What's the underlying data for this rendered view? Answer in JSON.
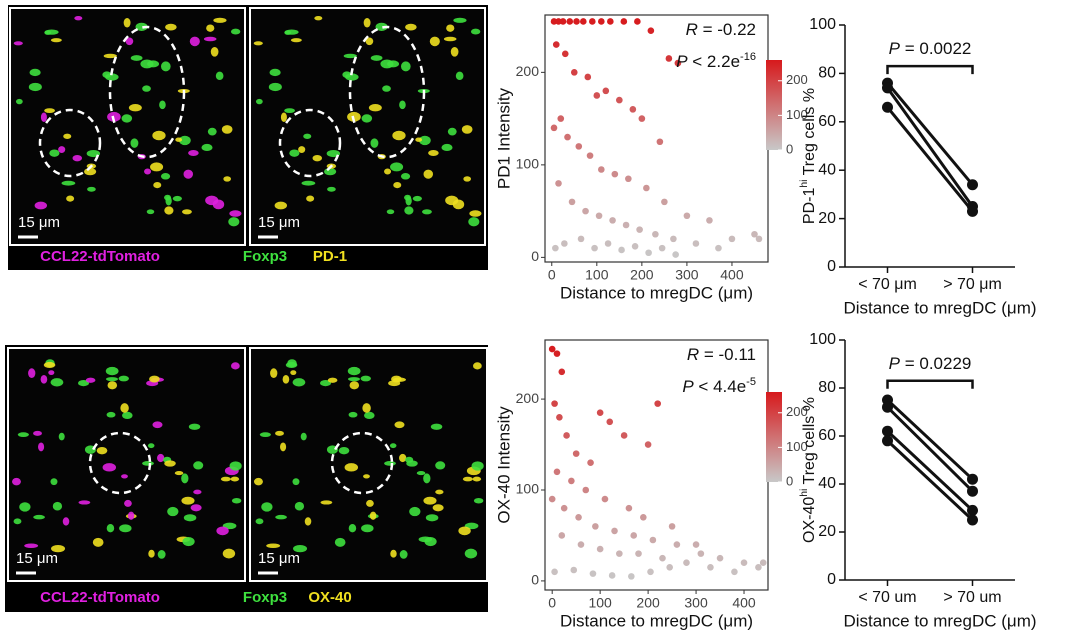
{
  "image_panels": [
    {
      "scale_bars": [
        "15 μm",
        "15 μm"
      ],
      "legend": [
        {
          "text": "CCL22-tdTomato",
          "color": "#e020e0"
        },
        {
          "text": "Foxp3",
          "color": "#3ee03e"
        },
        {
          "text": "PD-1",
          "color": "#f0e020"
        }
      ]
    },
    {
      "scale_bars": [
        "15 μm",
        "15 μm"
      ],
      "legend": [
        {
          "text": "CCL22-tdTomato",
          "color": "#e020e0"
        },
        {
          "text": "Foxp3",
          "color": "#3ee03e"
        },
        {
          "text": "OX-40",
          "color": "#f0e020"
        }
      ]
    }
  ],
  "chart_data": [
    {
      "type": "scatter",
      "xlabel": "Distance to mregDC (μm)",
      "ylabel": "PD1 Intensity",
      "x": [
        5,
        15,
        25,
        40,
        55,
        70,
        90,
        110,
        130,
        160,
        190,
        220,
        260,
        280,
        10,
        30,
        50,
        80,
        100,
        120,
        150,
        180,
        200,
        240,
        5,
        20,
        35,
        60,
        85,
        110,
        140,
        170,
        210,
        250,
        300,
        350,
        400,
        450,
        15,
        45,
        75,
        105,
        135,
        165,
        195,
        230,
        270,
        320,
        370,
        460,
        8,
        28,
        65,
        95,
        125,
        155,
        185,
        215,
        245,
        275
      ],
      "y": [
        255,
        255,
        255,
        255,
        255,
        255,
        255,
        255,
        255,
        255,
        255,
        245,
        215,
        210,
        230,
        220,
        200,
        195,
        175,
        180,
        170,
        160,
        150,
        125,
        140,
        150,
        130,
        120,
        110,
        95,
        90,
        85,
        75,
        60,
        45,
        40,
        20,
        25,
        80,
        60,
        50,
        45,
        40,
        35,
        30,
        25,
        20,
        15,
        10,
        20,
        10,
        15,
        20,
        10,
        15,
        8,
        12,
        5,
        10,
        3
      ],
      "xlim": [
        -15,
        480
      ],
      "xticks": [
        0,
        100,
        200,
        300,
        400
      ],
      "ylim": [
        -5,
        262
      ],
      "yticks": [
        0,
        100,
        200
      ],
      "colorscale": {
        "low": "#c8c8c8",
        "high": "#d7191c",
        "lim": [
          0,
          260
        ],
        "ticks": [
          0,
          100,
          200
        ]
      },
      "annotations": [
        [
          {
            "text": "R",
            "style": "italic"
          },
          {
            "text": " = -0.22"
          }
        ],
        [
          {
            "text": "P",
            "style": "italic"
          },
          {
            "text": " < 2.2e"
          },
          {
            "text": "-16",
            "style": "sup"
          }
        ]
      ]
    },
    {
      "type": "line",
      "xlabel": "Distance to mregDC (μm)",
      "ylabel": [
        {
          "text": "PD-1"
        },
        {
          "text": "hi",
          "style": "sup"
        },
        {
          "text": " Treg cells %"
        }
      ],
      "categories": [
        "< 70 μm",
        "> 70 μm"
      ],
      "series": [
        {
          "color": "#111111",
          "values": [
            76,
            34
          ]
        },
        {
          "color": "#111111",
          "values": [
            74,
            25
          ]
        },
        {
          "color": "#111111",
          "values": [
            66,
            23
          ]
        }
      ],
      "ylim": [
        0,
        100
      ],
      "yticks": [
        0,
        20,
        40,
        60,
        80,
        100
      ],
      "bracket": [
        {
          "text": "P",
          "style": "italic"
        },
        {
          "text": " = 0.0022"
        }
      ]
    },
    {
      "type": "scatter",
      "xlabel": "Distance to mregDC (μm)",
      "ylabel": "OX-40 Intensity",
      "x": [
        0,
        10,
        20,
        5,
        15,
        30,
        50,
        80,
        100,
        120,
        150,
        200,
        220,
        10,
        40,
        70,
        110,
        160,
        190,
        250,
        300,
        0,
        25,
        55,
        90,
        130,
        170,
        210,
        260,
        310,
        350,
        400,
        430,
        20,
        60,
        100,
        140,
        180,
        230,
        280,
        330,
        380,
        440,
        5,
        45,
        85,
        125,
        165,
        205,
        245
      ],
      "y": [
        255,
        250,
        230,
        195,
        180,
        160,
        140,
        130,
        185,
        175,
        160,
        150,
        195,
        120,
        110,
        100,
        90,
        80,
        70,
        60,
        40,
        90,
        80,
        70,
        60,
        55,
        50,
        45,
        40,
        30,
        25,
        20,
        15,
        50,
        40,
        35,
        30,
        30,
        25,
        20,
        15,
        10,
        20,
        10,
        12,
        8,
        6,
        5,
        10,
        15
      ],
      "xlim": [
        -15,
        450
      ],
      "xticks": [
        0,
        100,
        200,
        300,
        400
      ],
      "ylim": [
        -10,
        265
      ],
      "yticks": [
        0,
        100,
        200
      ],
      "colorscale": {
        "low": "#c8c8c8",
        "high": "#d7191c",
        "lim": [
          0,
          260
        ],
        "ticks": [
          0,
          100,
          200
        ]
      },
      "annotations": [
        [
          {
            "text": "R",
            "style": "italic"
          },
          {
            "text": " = -0.11"
          }
        ],
        [
          {
            "text": "P",
            "style": "italic"
          },
          {
            "text": " < 4.4e"
          },
          {
            "text": "-5",
            "style": "sup"
          }
        ]
      ]
    },
    {
      "type": "line",
      "xlabel": "Distance to mregDC (μm)",
      "ylabel": [
        {
          "text": "OX-40"
        },
        {
          "text": "hi",
          "style": "sup"
        },
        {
          "text": " Treg cells %"
        }
      ],
      "categories": [
        "< 70 um",
        "> 70 um"
      ],
      "series": [
        {
          "color": "#111111",
          "values": [
            75,
            42
          ]
        },
        {
          "color": "#111111",
          "values": [
            72,
            37
          ]
        },
        {
          "color": "#111111",
          "values": [
            62,
            29
          ]
        },
        {
          "color": "#111111",
          "values": [
            58,
            25
          ]
        }
      ],
      "ylim": [
        0,
        100
      ],
      "yticks": [
        0,
        20,
        40,
        60,
        80,
        100
      ],
      "bracket": [
        {
          "text": "P",
          "style": "italic"
        },
        {
          "text": " = 0.0229"
        }
      ]
    }
  ]
}
